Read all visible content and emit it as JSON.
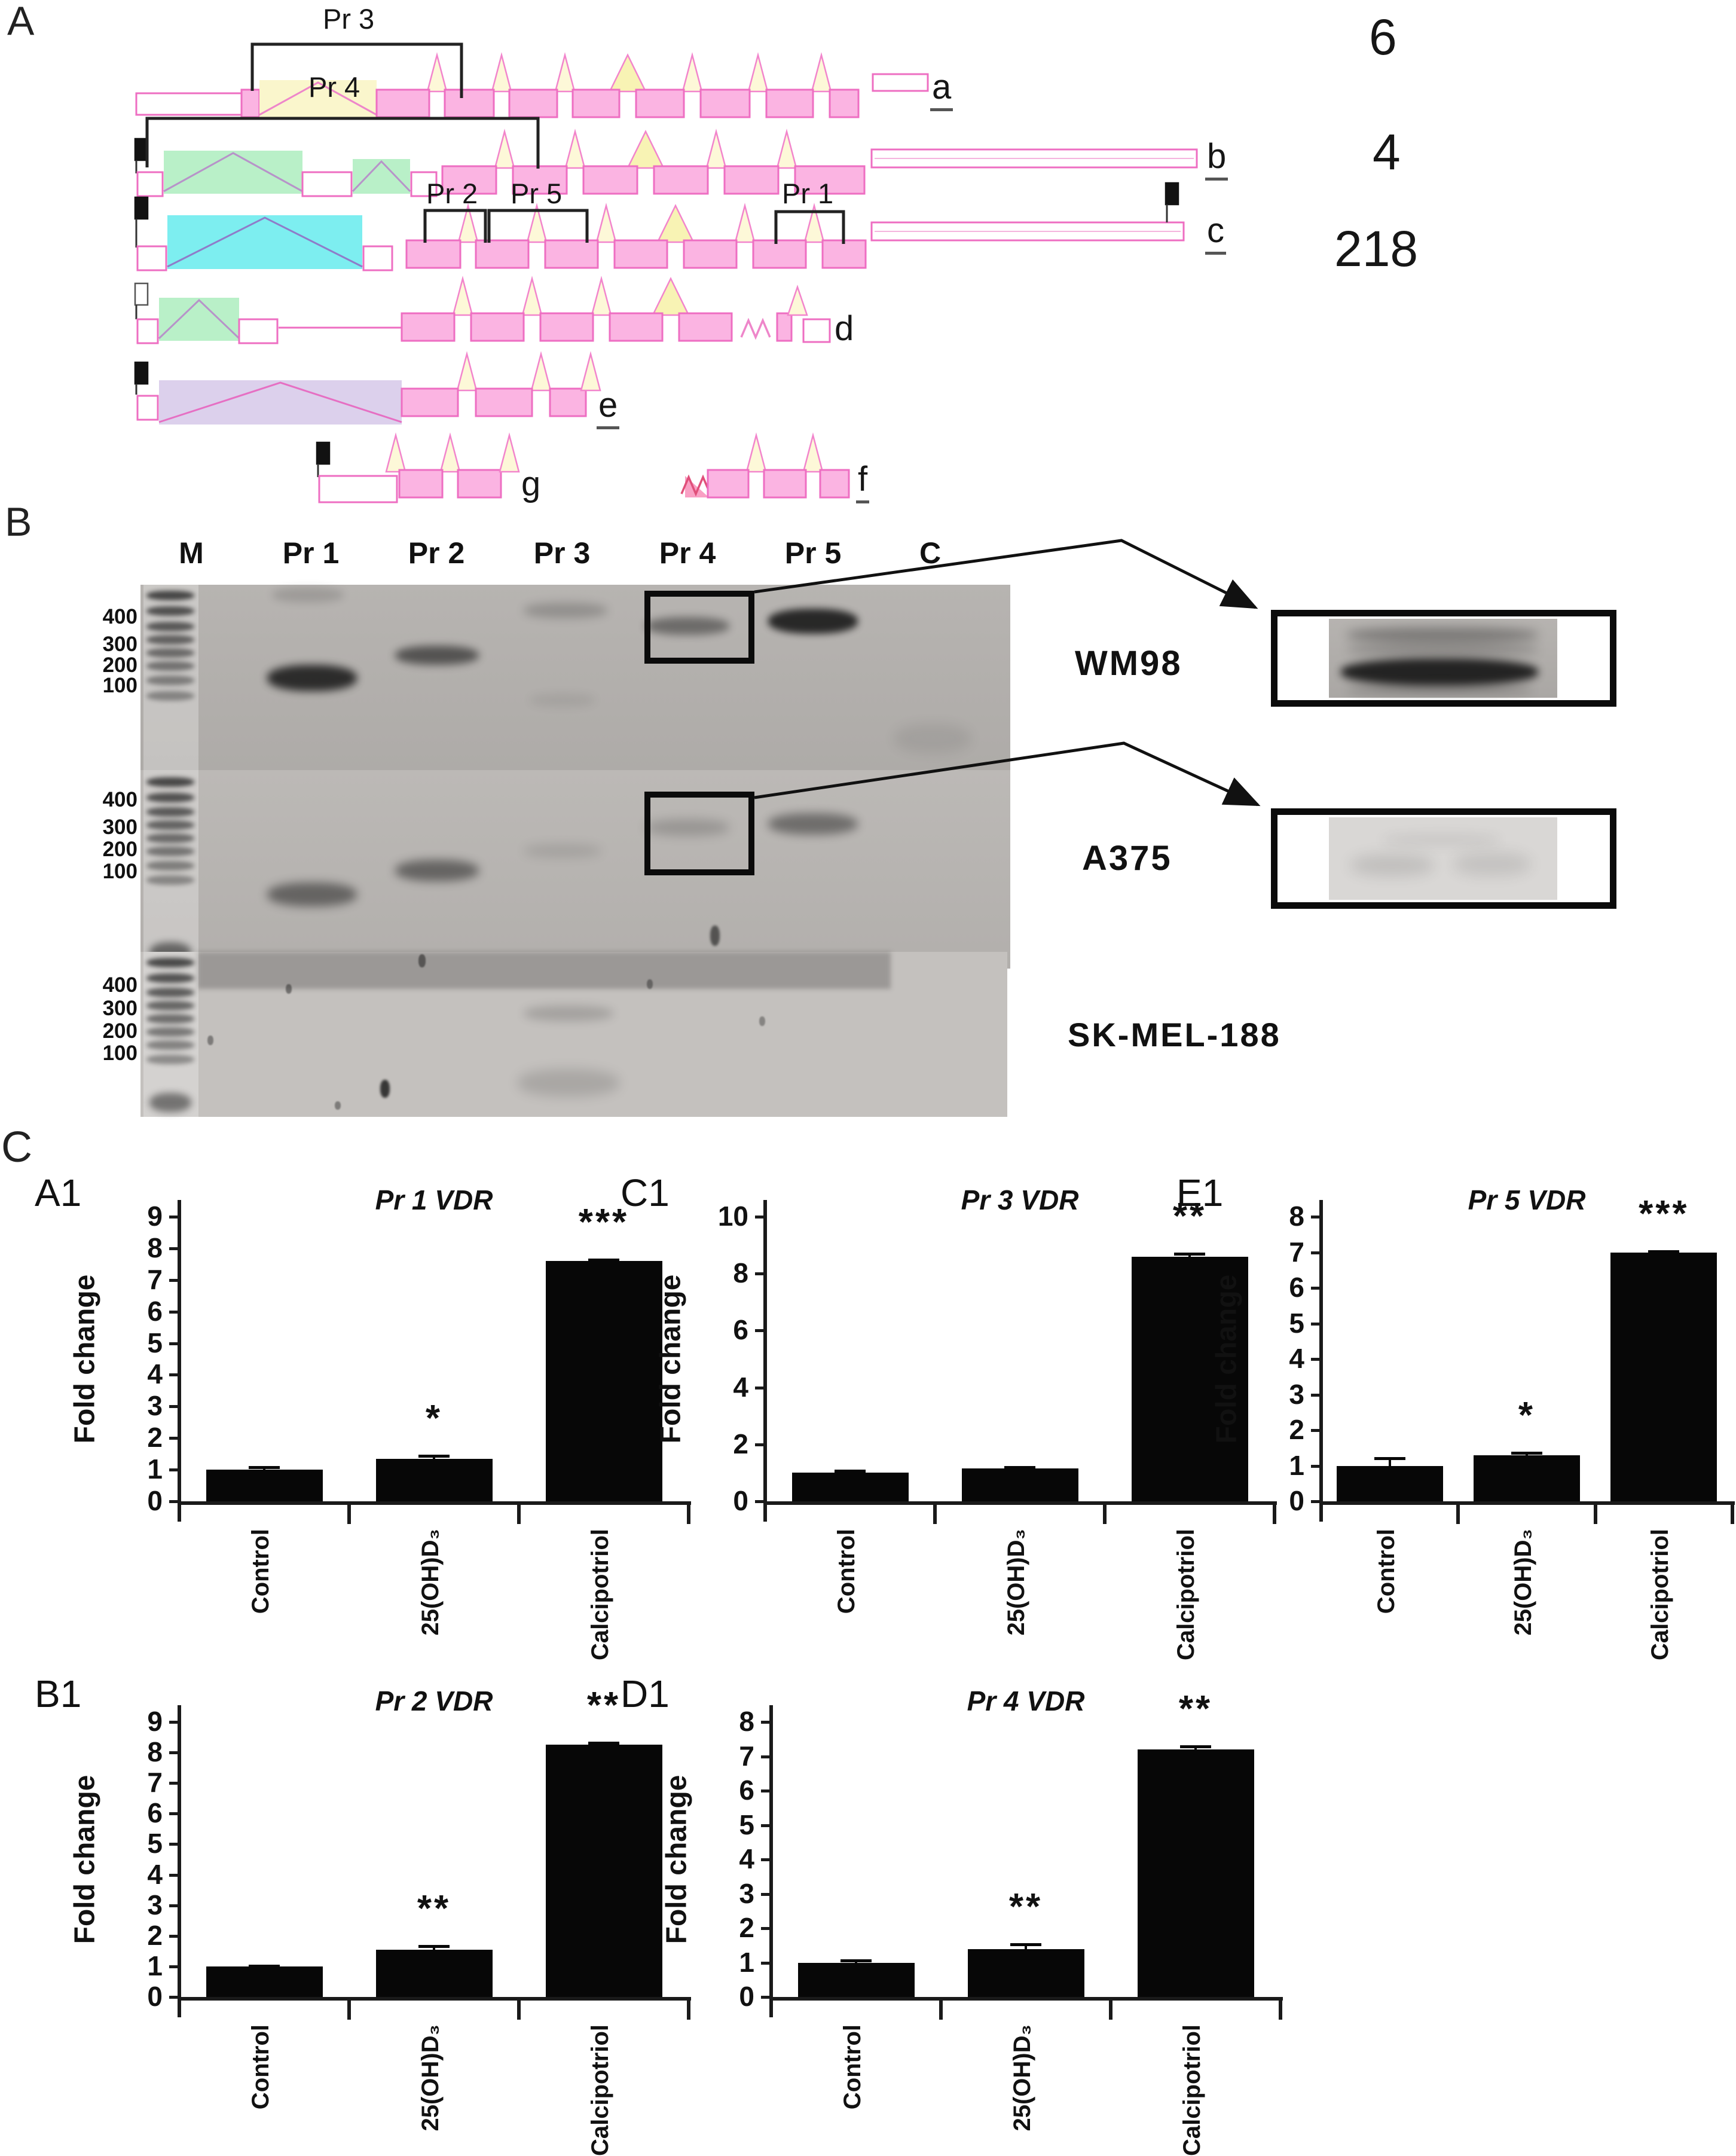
{
  "figure": {
    "panel_a": {
      "label": "A",
      "primers": {
        "pr1": "Pr 1",
        "pr2": "Pr 2",
        "pr3": "Pr 3",
        "pr4": "Pr 4",
        "pr5": "Pr 5"
      },
      "transcripts": [
        "a",
        "b",
        "c",
        "d",
        "e",
        "f",
        "g"
      ],
      "counts": [
        "6",
        "4",
        "218"
      ]
    },
    "panel_b": {
      "label": "B",
      "lanes": [
        "M",
        "Pr 1",
        "Pr 2",
        "Pr 3",
        "Pr 4",
        "Pr 5",
        "C"
      ],
      "markers": [
        "400",
        "300",
        "200",
        "100"
      ],
      "cell_lines": [
        "WM98",
        "A375",
        "SK-MEL-188"
      ]
    },
    "panel_c": {
      "label": "C"
    }
  },
  "chart_data": [
    {
      "type": "bar",
      "panel_label": "A1",
      "title": "Pr 1 VDR",
      "ylabel": "Fold change",
      "categories": [
        "Control",
        "25(OH)D₃",
        "Calcipotriol"
      ],
      "values": [
        1.0,
        1.35,
        7.6
      ],
      "errors": [
        0.12,
        0.12,
        0.08
      ],
      "significance": [
        "",
        "*",
        "***"
      ],
      "ylim": [
        0,
        9
      ],
      "yticks": [
        0,
        1,
        2,
        3,
        4,
        5,
        6,
        7,
        8,
        9
      ],
      "grid": false,
      "legend": "none"
    },
    {
      "type": "bar",
      "panel_label": "B1",
      "title": "Pr 2 VDR",
      "ylabel": "Fold change",
      "categories": [
        "Control",
        "25(OH)D₃",
        "Calcipotriol"
      ],
      "values": [
        1.0,
        1.55,
        8.25
      ],
      "errors": [
        0.06,
        0.15,
        0.1
      ],
      "significance": [
        "",
        "**",
        "**"
      ],
      "ylim": [
        0,
        9
      ],
      "yticks": [
        0,
        1,
        2,
        3,
        4,
        5,
        6,
        7,
        8,
        9
      ],
      "grid": false,
      "legend": "none"
    },
    {
      "type": "bar",
      "panel_label": "C1",
      "title": "Pr 3 VDR",
      "ylabel": "Fold change",
      "categories": [
        "Control",
        "25(OH)D₃",
        "Calcipotriol"
      ],
      "values": [
        1.0,
        1.15,
        8.6
      ],
      "errors": [
        0.12,
        0.1,
        0.15
      ],
      "significance": [
        "",
        "",
        "**"
      ],
      "ylim": [
        0,
        10
      ],
      "yticks": [
        0,
        2,
        4,
        6,
        8,
        10
      ],
      "grid": false,
      "legend": "none"
    },
    {
      "type": "bar",
      "panel_label": "D1",
      "title": "Pr 4 VDR",
      "ylabel": "Fold change",
      "categories": [
        "Control",
        "25(OH)D₃",
        "Calcipotriol"
      ],
      "values": [
        1.0,
        1.4,
        7.2
      ],
      "errors": [
        0.1,
        0.17,
        0.12
      ],
      "significance": [
        "",
        "**",
        "**"
      ],
      "ylim": [
        0,
        8
      ],
      "yticks": [
        0,
        1,
        2,
        3,
        4,
        5,
        6,
        7,
        8
      ],
      "grid": false,
      "legend": "none"
    },
    {
      "type": "bar",
      "panel_label": "E1",
      "title": "Pr 5 VDR",
      "ylabel": "Fold change",
      "categories": [
        "Control",
        "25(OH)D₃",
        "Calcipotriol"
      ],
      "values": [
        1.0,
        1.3,
        7.0
      ],
      "errors": [
        0.25,
        0.1,
        0.06
      ],
      "significance": [
        "",
        "*",
        "***"
      ],
      "ylim": [
        0,
        8
      ],
      "yticks": [
        0,
        1,
        2,
        3,
        4,
        5,
        6,
        7,
        8
      ],
      "grid": false,
      "legend": "none"
    }
  ]
}
